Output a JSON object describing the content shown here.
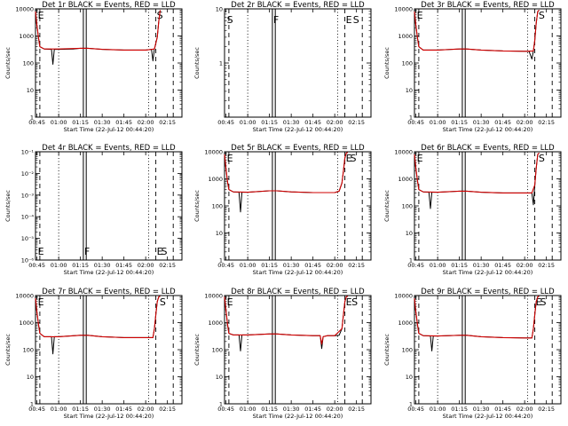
{
  "chart_data": [
    {
      "type": "line",
      "title": "Det 1r BLACK = Events, RED = LLD",
      "xlabel": "Start Time (22-Jul-12 00:44:20)",
      "ylabel": "Counts/sec",
      "xlim": [
        "00:44",
        "02:25"
      ],
      "y_scale": "log",
      "ylim": [
        1,
        10000
      ],
      "x_ticks": [
        "00:45",
        "01:00",
        "01:15",
        "01:30",
        "01:45",
        "02:00",
        "02:15"
      ],
      "y_ticks": [
        "1",
        "10",
        "100",
        "1000",
        "10000"
      ],
      "markers": [
        {
          "label": "E",
          "x": "00:45"
        },
        {
          "label": "S",
          "x": "02:07"
        }
      ],
      "series": [
        {
          "color": "#000000",
          "x": [
            "00:44",
            "00:45",
            "00:46",
            "00:47",
            "00:50",
            "00:55",
            "00:56",
            "00:57",
            "01:00",
            "01:10",
            "01:15",
            "01:20",
            "01:30",
            "01:45",
            "02:00",
            "02:04",
            "02:05",
            "02:06",
            "02:08",
            "02:09",
            "02:10"
          ],
          "y": [
            8000,
            2500,
            900,
            400,
            330,
            320,
            90,
            320,
            320,
            330,
            350,
            350,
            320,
            300,
            300,
            320,
            120,
            330,
            900,
            3500,
            9000
          ]
        },
        {
          "color": "#d00000",
          "x": [
            "00:44",
            "00:45",
            "00:46",
            "00:47",
            "00:50",
            "01:00",
            "01:15",
            "01:20",
            "01:30",
            "01:45",
            "02:00",
            "02:06",
            "02:08",
            "02:09",
            "02:10"
          ],
          "y": [
            8000,
            2500,
            900,
            400,
            330,
            330,
            350,
            350,
            320,
            300,
            300,
            330,
            900,
            3500,
            9000
          ]
        }
      ]
    },
    {
      "type": "line",
      "title": "Det 2r BLACK = Events, RED = LLD",
      "xlabel": "Start Time (22-Jul-12 00:44:20)",
      "ylabel": "Counts/sec",
      "xlim": [
        "00:44",
        "02:25"
      ],
      "y_scale": "log",
      "ylim": [
        0.1,
        10
      ],
      "x_ticks": [
        "00:45",
        "01:00",
        "01:15",
        "01:30",
        "01:45",
        "02:00",
        "02:15"
      ],
      "y_ticks": [
        "1",
        "10"
      ],
      "markers": [
        {
          "label": "S",
          "x": "00:45"
        },
        {
          "label": "F",
          "x": "01:17"
        },
        {
          "label": "E",
          "x": "02:07"
        },
        {
          "label": "S",
          "x": "02:12"
        }
      ],
      "series": []
    },
    {
      "type": "line",
      "title": "Det 3r BLACK = Events, RED = LLD",
      "xlabel": "Start Time (22-Jul-12 00:44:20)",
      "ylabel": "Counts/sec",
      "xlim": [
        "00:44",
        "02:25"
      ],
      "y_scale": "log",
      "ylim": [
        1,
        10000
      ],
      "x_ticks": [
        "00:45",
        "01:00",
        "01:15",
        "01:30",
        "01:45",
        "02:00",
        "02:15"
      ],
      "y_ticks": [
        "1",
        "10",
        "100",
        "1000",
        "10000"
      ],
      "markers": [
        {
          "label": "E",
          "x": "00:45"
        },
        {
          "label": "S",
          "x": "02:09"
        }
      ],
      "series": [
        {
          "color": "#000000",
          "x": [
            "00:44",
            "00:45",
            "00:46",
            "00:47",
            "00:50",
            "01:00",
            "01:15",
            "01:20",
            "01:30",
            "01:45",
            "02:00",
            "02:03",
            "02:05",
            "02:06",
            "02:07",
            "02:08",
            "02:09",
            "02:10"
          ],
          "y": [
            8000,
            2500,
            900,
            400,
            300,
            300,
            330,
            330,
            300,
            280,
            270,
            270,
            140,
            280,
            700,
            3000,
            8000,
            9000
          ]
        },
        {
          "color": "#d00000",
          "x": [
            "00:44",
            "00:45",
            "00:46",
            "00:47",
            "00:50",
            "01:00",
            "01:15",
            "01:20",
            "01:30",
            "01:45",
            "02:00",
            "02:06",
            "02:07",
            "02:08",
            "02:09",
            "02:10"
          ],
          "y": [
            8000,
            2500,
            900,
            400,
            300,
            300,
            330,
            330,
            300,
            280,
            270,
            280,
            700,
            3000,
            8000,
            9000
          ]
        }
      ]
    },
    {
      "type": "line",
      "title": "Det 4r BLACK = Events, RED = LLD",
      "xlabel": "Start Time (22-Jul-12 00:44:20)",
      "ylabel": "Counts/sec",
      "xlim": [
        "00:44",
        "02:25"
      ],
      "y_scale": "log",
      "ylim": [
        1e-06,
        0.1
      ],
      "x_ticks": [
        "00:45",
        "01:00",
        "01:15",
        "01:30",
        "01:45",
        "02:00",
        "02:15"
      ],
      "y_ticks": [
        "10⁻⁶",
        "10⁻⁵",
        "10⁻⁴",
        "10⁻³",
        "10⁻²",
        "10⁻¹"
      ],
      "markers": [
        {
          "label": "E",
          "x": "00:45"
        },
        {
          "label": "F",
          "x": "01:17"
        },
        {
          "label": "E",
          "x": "02:07"
        },
        {
          "label": "S",
          "x": "02:10"
        }
      ],
      "series": []
    },
    {
      "type": "line",
      "title": "Det 5r BLACK = Events, RED = LLD",
      "xlabel": "Start Time (22-Jul-12 00:44:20)",
      "ylabel": "Counts/sec",
      "xlim": [
        "00:44",
        "02:25"
      ],
      "y_scale": "log",
      "ylim": [
        1,
        10000
      ],
      "x_ticks": [
        "00:45",
        "01:00",
        "01:15",
        "01:30",
        "01:45",
        "02:00",
        "02:15"
      ],
      "y_ticks": [
        "1",
        "10",
        "100",
        "1000",
        "10000"
      ],
      "markers": [
        {
          "label": "E",
          "x": "00:45"
        },
        {
          "label": "E",
          "x": "02:07"
        },
        {
          "label": "S",
          "x": "02:10"
        }
      ],
      "series": [
        {
          "color": "#000000",
          "x": [
            "00:44",
            "00:45",
            "00:46",
            "00:47",
            "00:50",
            "00:54",
            "00:55",
            "00:56",
            "01:00",
            "01:15",
            "01:20",
            "01:30",
            "01:45",
            "02:00",
            "02:03",
            "02:05",
            "02:06",
            "02:07",
            "02:08",
            "02:09"
          ],
          "y": [
            8000,
            2500,
            800,
            400,
            330,
            320,
            60,
            320,
            320,
            360,
            360,
            330,
            310,
            310,
            350,
            700,
            2000,
            6000,
            9000,
            9500
          ]
        },
        {
          "color": "#d00000",
          "x": [
            "00:44",
            "00:45",
            "00:46",
            "00:47",
            "00:50",
            "01:00",
            "01:15",
            "01:20",
            "01:30",
            "01:45",
            "02:00",
            "02:03",
            "02:05",
            "02:06",
            "02:07",
            "02:08",
            "02:09"
          ],
          "y": [
            8000,
            2500,
            800,
            400,
            330,
            320,
            360,
            360,
            330,
            310,
            310,
            350,
            700,
            2000,
            6000,
            9000,
            9500
          ]
        }
      ]
    },
    {
      "type": "line",
      "title": "Det 6r BLACK = Events, RED = LLD",
      "xlabel": "Start Time (22-Jul-12 00:44:20)",
      "ylabel": "Counts/sec",
      "xlim": [
        "00:44",
        "02:25"
      ],
      "y_scale": "log",
      "ylim": [
        1,
        10000
      ],
      "x_ticks": [
        "00:45",
        "01:00",
        "01:15",
        "01:30",
        "01:45",
        "02:00",
        "02:15"
      ],
      "y_ticks": [
        "1",
        "10",
        "100",
        "1000",
        "10000"
      ],
      "markers": [
        {
          "label": "E",
          "x": "00:45"
        },
        {
          "label": "S",
          "x": "02:09"
        }
      ],
      "series": [
        {
          "color": "#000000",
          "x": [
            "00:44",
            "00:45",
            "00:46",
            "00:47",
            "00:50",
            "00:54",
            "00:55",
            "00:56",
            "01:00",
            "01:15",
            "01:20",
            "01:30",
            "01:45",
            "02:00",
            "02:05",
            "02:06",
            "02:07",
            "02:08",
            "02:09",
            "02:10"
          ],
          "y": [
            8000,
            2500,
            900,
            400,
            330,
            320,
            80,
            320,
            320,
            350,
            350,
            320,
            300,
            300,
            300,
            110,
            600,
            2500,
            8000,
            9000
          ]
        },
        {
          "color": "#d00000",
          "x": [
            "00:44",
            "00:45",
            "00:46",
            "00:47",
            "00:50",
            "01:00",
            "01:15",
            "01:20",
            "01:30",
            "01:45",
            "02:00",
            "02:05",
            "02:07",
            "02:08",
            "02:09",
            "02:10"
          ],
          "y": [
            8000,
            2500,
            900,
            400,
            330,
            320,
            350,
            350,
            320,
            300,
            300,
            300,
            600,
            2500,
            8000,
            9000
          ]
        }
      ]
    },
    {
      "type": "line",
      "title": "Det 7r BLACK = Events, RED = LLD",
      "xlabel": "Start Time (22-Jul-12 00:44:20)",
      "ylabel": "Counts/sec",
      "xlim": [
        "00:44",
        "02:25"
      ],
      "y_scale": "log",
      "ylim": [
        1,
        10000
      ],
      "x_ticks": [
        "00:45",
        "01:00",
        "01:15",
        "01:30",
        "01:45",
        "02:00",
        "02:15"
      ],
      "y_ticks": [
        "1",
        "10",
        "100",
        "1000",
        "10000"
      ],
      "markers": [
        {
          "label": "E",
          "x": "00:45"
        },
        {
          "label": "S",
          "x": "02:09"
        }
      ],
      "series": [
        {
          "color": "#000000",
          "x": [
            "00:44",
            "00:45",
            "00:46",
            "00:47",
            "00:50",
            "00:55",
            "00:56",
            "00:57",
            "01:00",
            "01:15",
            "01:20",
            "01:30",
            "01:45",
            "02:00",
            "02:05",
            "02:06",
            "02:07",
            "02:08",
            "02:09",
            "02:10"
          ],
          "y": [
            8000,
            2500,
            900,
            400,
            300,
            300,
            70,
            300,
            300,
            340,
            340,
            300,
            280,
            280,
            280,
            600,
            2000,
            6000,
            9000,
            9500
          ]
        },
        {
          "color": "#d00000",
          "x": [
            "00:44",
            "00:45",
            "00:46",
            "00:47",
            "00:50",
            "01:00",
            "01:15",
            "01:20",
            "01:30",
            "01:45",
            "02:00",
            "02:05",
            "02:06",
            "02:07",
            "02:08",
            "02:09",
            "02:10"
          ],
          "y": [
            8000,
            2500,
            900,
            400,
            300,
            300,
            340,
            340,
            300,
            280,
            280,
            280,
            600,
            2000,
            6000,
            9000,
            9500
          ]
        }
      ]
    },
    {
      "type": "line",
      "title": "Det 8r BLACK = Events, RED = LLD",
      "xlabel": "Start Time (22-Jul-12 00:44:20)",
      "ylabel": "Counts/sec",
      "xlim": [
        "00:44",
        "02:25"
      ],
      "y_scale": "log",
      "ylim": [
        1,
        10000
      ],
      "x_ticks": [
        "00:45",
        "01:00",
        "01:15",
        "01:30",
        "01:45",
        "02:00",
        "02:15"
      ],
      "y_ticks": [
        "1",
        "10",
        "100",
        "1000",
        "10000"
      ],
      "markers": [
        {
          "label": "E",
          "x": "00:45"
        },
        {
          "label": "E",
          "x": "02:07"
        },
        {
          "label": "S",
          "x": "02:11"
        }
      ],
      "series": [
        {
          "color": "#000000",
          "x": [
            "00:44",
            "00:45",
            "00:46",
            "00:47",
            "00:50",
            "00:54",
            "00:55",
            "00:56",
            "01:00",
            "01:15",
            "01:20",
            "01:30",
            "01:45",
            "01:50",
            "01:51",
            "01:52",
            "01:55",
            "02:00",
            "02:03",
            "02:05",
            "02:06",
            "02:07",
            "02:08",
            "02:09"
          ],
          "y": [
            9000,
            3000,
            900,
            400,
            350,
            350,
            90,
            350,
            350,
            380,
            380,
            350,
            330,
            330,
            110,
            300,
            330,
            330,
            340,
            600,
            2000,
            6000,
            9000,
            9500
          ]
        },
        {
          "color": "#d00000",
          "x": [
            "00:44",
            "00:45",
            "00:46",
            "00:47",
            "00:50",
            "01:00",
            "01:15",
            "01:20",
            "01:30",
            "01:45",
            "01:50",
            "01:51",
            "01:52",
            "01:55",
            "02:00",
            "02:05",
            "02:06",
            "02:07",
            "02:08",
            "02:09"
          ],
          "y": [
            9000,
            3000,
            900,
            400,
            350,
            350,
            380,
            380,
            350,
            330,
            330,
            160,
            300,
            330,
            330,
            600,
            2000,
            6000,
            9000,
            9500
          ]
        }
      ]
    },
    {
      "type": "line",
      "title": "Det 9r BLACK = Events, RED = LLD",
      "xlabel": "Start Time (22-Jul-12 00:44:20)",
      "ylabel": "Counts/sec",
      "xlim": [
        "00:44",
        "02:25"
      ],
      "y_scale": "log",
      "ylim": [
        1,
        10000
      ],
      "x_ticks": [
        "00:45",
        "01:00",
        "01:15",
        "01:30",
        "01:45",
        "02:00",
        "02:15"
      ],
      "y_ticks": [
        "1",
        "10",
        "100",
        "1000",
        "10000"
      ],
      "markers": [
        {
          "label": "E",
          "x": "02:07"
        },
        {
          "label": "S",
          "x": "02:10"
        }
      ],
      "series": [
        {
          "color": "#000000",
          "x": [
            "00:44",
            "00:45",
            "00:46",
            "00:47",
            "00:50",
            "00:55",
            "00:56",
            "00:57",
            "01:00",
            "01:15",
            "01:20",
            "01:30",
            "01:45",
            "02:00",
            "02:05",
            "02:06",
            "02:07",
            "02:08",
            "02:09",
            "02:10"
          ],
          "y": [
            8000,
            2500,
            900,
            400,
            330,
            320,
            90,
            320,
            320,
            340,
            340,
            300,
            280,
            270,
            270,
            600,
            2000,
            6000,
            9000,
            9500
          ]
        },
        {
          "color": "#d00000",
          "x": [
            "00:44",
            "00:45",
            "00:46",
            "00:47",
            "00:50",
            "01:00",
            "01:15",
            "01:20",
            "01:30",
            "01:45",
            "02:00",
            "02:05",
            "02:06",
            "02:07",
            "02:08",
            "02:09",
            "02:10"
          ],
          "y": [
            8000,
            2500,
            900,
            400,
            330,
            320,
            340,
            340,
            300,
            280,
            270,
            270,
            600,
            2000,
            6000,
            9000,
            9500
          ]
        }
      ]
    }
  ],
  "reference_lines": {
    "dashed_x": [
      "00:47",
      "02:07",
      "02:19"
    ],
    "dotted_x": [
      "01:00",
      "02:02"
    ],
    "solid_x": [
      "01:17",
      "01:19"
    ]
  }
}
